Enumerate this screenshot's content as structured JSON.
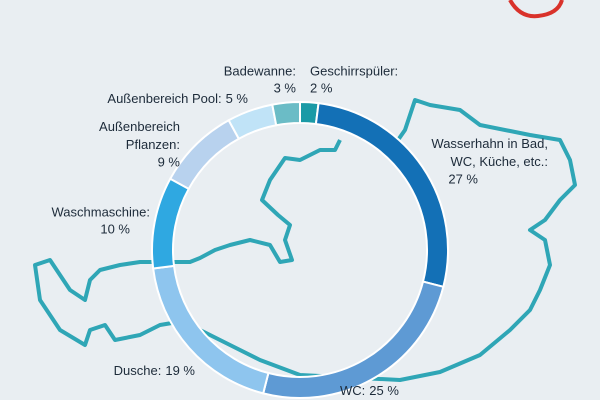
{
  "chart_data": {
    "type": "donut",
    "categories": [
      "Geschirrspüler:",
      "Wasserhahn in Bad, WC, Küche, etc.:",
      "WC:",
      "Dusche:",
      "Waschmaschine:",
      "Außenbereich Pflanzen:",
      "Außenbereich Pool:",
      "Badewanne:"
    ],
    "values": [
      2,
      27,
      25,
      19,
      10,
      9,
      5,
      3
    ],
    "value_labels": [
      "2 %",
      "27 %",
      "25 %",
      "19 %",
      "10 %",
      "9 %",
      "5 %",
      "3 %"
    ],
    "colors": [
      "#1a9aa6",
      "#1370b6",
      "#5e9ad4",
      "#8ec5ee",
      "#2fa8e1",
      "#b8d2ee",
      "#c0e3f7",
      "#6bbcc6"
    ]
  }
}
